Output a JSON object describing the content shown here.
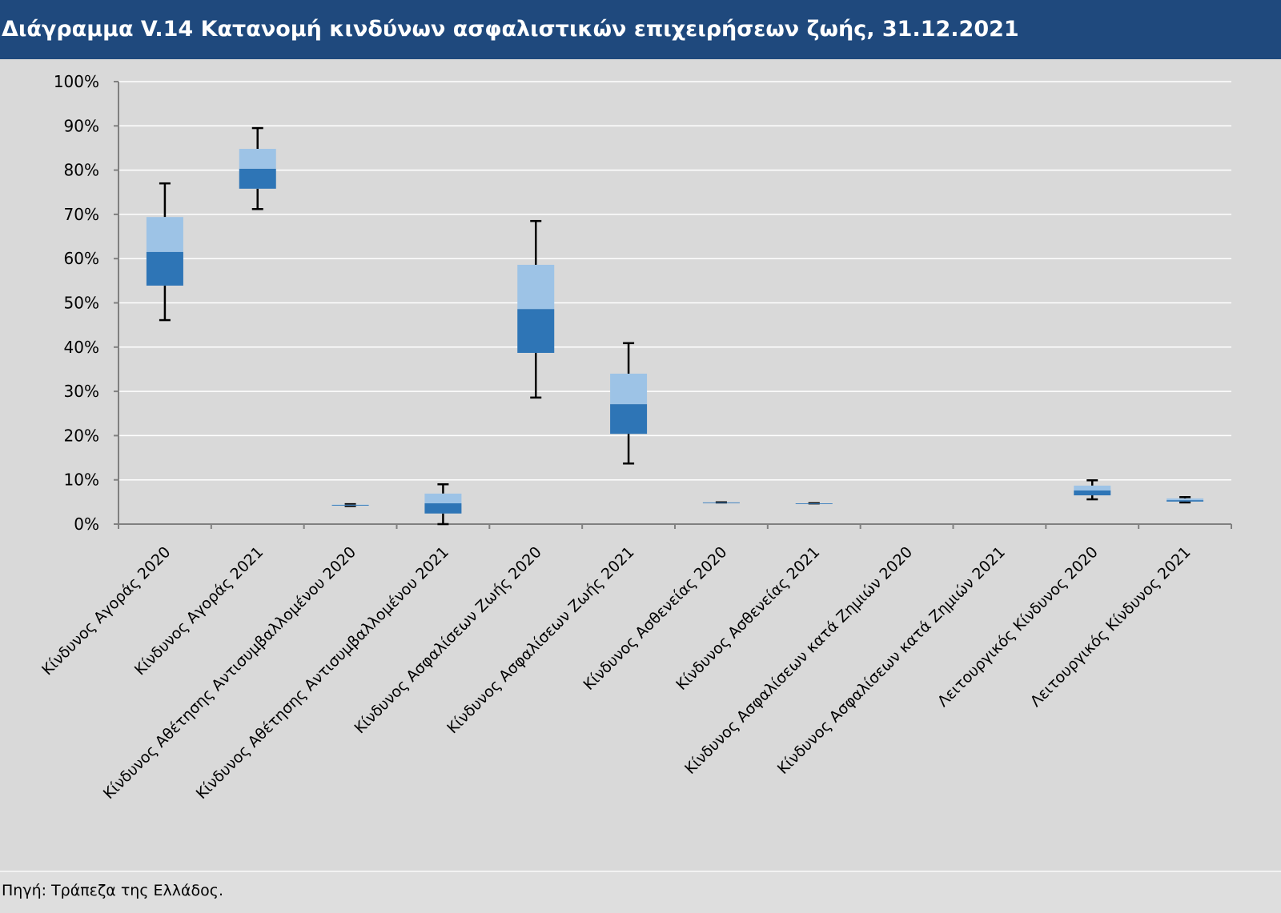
{
  "title": "Διάγραμμα V.14 Κατανομή κινδύνων ασφαλιστικών επιχειρήσεων ζωής, 31.12.2021",
  "source": "Πηγή: Τράπεζα της Ελλάδος.",
  "colors": {
    "header": "#1f497d",
    "lower_box": "#2e75b6",
    "upper_box": "#9dc3e6",
    "background": "#d9d9d9"
  },
  "chart_data": {
    "type": "boxplot",
    "ylim": [
      0,
      100
    ],
    "yticks": [
      "0%",
      "10%",
      "20%",
      "30%",
      "40%",
      "50%",
      "60%",
      "70%",
      "80%",
      "90%",
      "100%"
    ],
    "grid": true,
    "categories": [
      "Κίνδυνος Αγοράς 2020",
      "Κίνδυνος Αγοράς 2021",
      "Κίνδυνος Αθέτησης Αντισυμβαλλομένου 2020",
      "Κίνδυνος Αθέτησης Αντισυμβαλλομένου 2021",
      "Κίνδυνος Ασφαλίσεων Ζωής 2020",
      "Κίνδυνος Ασφαλίσεων Ζωής 2021",
      "Κίνδυνος Ασθενείας 2020",
      "Κίνδυνος Ασθενείας 2021",
      "Κίνδυνος Ασφαλίσεων κατά Ζημιών 2020",
      "Κίνδυνος Ασφαλίσεων κατά Ζημιών 2021",
      "Λειτουργικός Κίνδυνος 2020",
      "Λειτουργικός Κίνδυνος 2021"
    ],
    "series": [
      {
        "min": 46.1,
        "q1": 53.9,
        "median": 61.5,
        "q3": 69.4,
        "max": 77.0
      },
      {
        "min": 71.2,
        "q1": 75.8,
        "median": 80.3,
        "q3": 84.8,
        "max": 89.5
      },
      {
        "min": 4.1,
        "q1": 4.2,
        "median": 4.3,
        "q3": 4.4,
        "max": 4.5
      },
      {
        "min": 0.0,
        "q1": 2.4,
        "median": 4.7,
        "q3": 6.9,
        "max": 9.0
      },
      {
        "min": 28.6,
        "q1": 38.7,
        "median": 48.6,
        "q3": 58.6,
        "max": 68.5
      },
      {
        "min": 13.7,
        "q1": 20.4,
        "median": 27.1,
        "q3": 34.0,
        "max": 40.9
      },
      {
        "min": 4.9,
        "q1": 4.9,
        "median": 4.9,
        "q3": 4.9,
        "max": 4.9
      },
      {
        "min": 4.7,
        "q1": 4.7,
        "median": 4.7,
        "q3": 4.7,
        "max": 4.7
      },
      null,
      null,
      {
        "min": 5.6,
        "q1": 6.5,
        "median": 7.6,
        "q3": 8.7,
        "max": 9.9
      },
      {
        "min": 4.9,
        "q1": 5.1,
        "median": 5.4,
        "q3": 5.8,
        "max": 6.1
      }
    ]
  }
}
